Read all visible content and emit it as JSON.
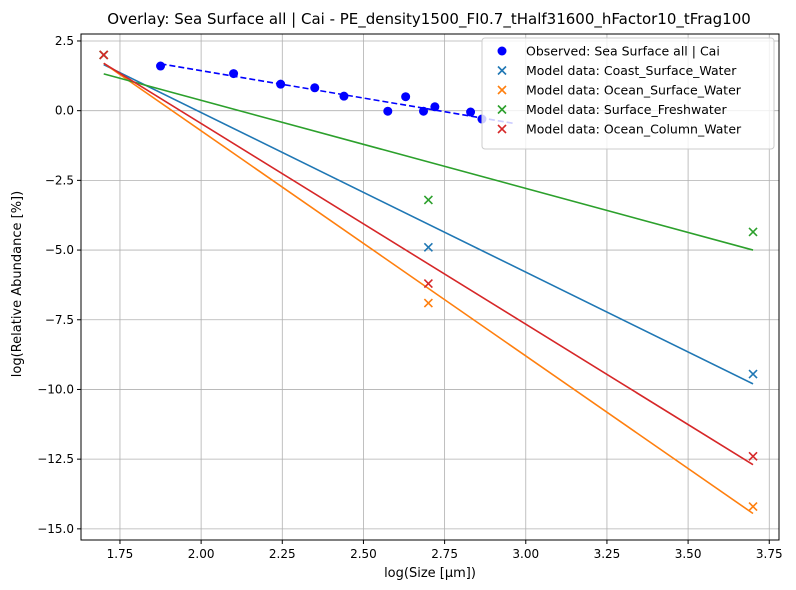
{
  "chart_data": {
    "type": "scatter",
    "title": "Overlay: Sea Surface all | Cai - PE_density1500_FI0.7_tHalf31600_hFactor10_tFrag100",
    "xlabel": "log(Size [µm])",
    "ylabel": "log(Relative Abundance [%])",
    "xlim": [
      1.63,
      3.78
    ],
    "ylim": [
      -15.4,
      2.75
    ],
    "xticks": [
      1.75,
      2.0,
      2.25,
      2.5,
      2.75,
      3.0,
      3.25,
      3.5,
      3.75
    ],
    "xtick_labels": [
      "1.75",
      "2.00",
      "2.25",
      "2.50",
      "2.75",
      "3.00",
      "3.25",
      "3.50",
      "3.75"
    ],
    "yticks": [
      2.5,
      0.0,
      -2.5,
      -5.0,
      -7.5,
      -10.0,
      -12.5,
      -15.0
    ],
    "ytick_labels": [
      "2.5",
      "0.0",
      "−2.5",
      "−5.0",
      "−7.5",
      "−10.0",
      "−12.5",
      "−15.0"
    ],
    "grid": true,
    "legend_position": "top-right",
    "observed": {
      "name": "Observed: Sea Surface all | Cai",
      "color": "#0000ff",
      "x": [
        1.875,
        2.1,
        2.245,
        2.35,
        2.44,
        2.575,
        2.63,
        2.685,
        2.72,
        2.83,
        2.865
      ],
      "y": [
        1.6,
        1.33,
        0.95,
        0.82,
        0.52,
        -0.02,
        0.5,
        -0.02,
        0.14,
        -0.05,
        -0.3
      ],
      "fit": {
        "x": [
          1.875,
          2.96
        ],
        "y": [
          1.68,
          -0.45
        ]
      }
    },
    "series": [
      {
        "name": "Model data: Coast_Surface_Water",
        "color": "#1f77b4",
        "x": [
          1.7,
          2.7,
          3.7
        ],
        "y": [
          2.0,
          -4.9,
          -9.45
        ],
        "fit": {
          "x": [
            1.7,
            3.7
          ],
          "y": [
            1.65,
            -9.8
          ]
        }
      },
      {
        "name": "Model data: Ocean_Surface_Water",
        "color": "#ff7f0e",
        "x": [
          1.7,
          2.7,
          3.7
        ],
        "y": [
          2.0,
          -6.9,
          -14.2
        ],
        "fit": {
          "x": [
            1.7,
            3.7
          ],
          "y": [
            1.7,
            -14.45
          ]
        }
      },
      {
        "name": "Model data: Surface_Freshwater",
        "color": "#2ca02c",
        "x": [
          1.7,
          2.7,
          3.7
        ],
        "y": [
          2.0,
          -3.2,
          -4.35
        ],
        "fit": {
          "x": [
            1.7,
            3.7
          ],
          "y": [
            1.32,
            -5.0
          ]
        }
      },
      {
        "name": "Model data: Ocean_Column_Water",
        "color": "#d62728",
        "x": [
          1.7,
          2.7,
          3.7
        ],
        "y": [
          2.0,
          -6.2,
          -12.4
        ],
        "fit": {
          "x": [
            1.7,
            3.7
          ],
          "y": [
            1.7,
            -12.7
          ]
        }
      }
    ]
  }
}
